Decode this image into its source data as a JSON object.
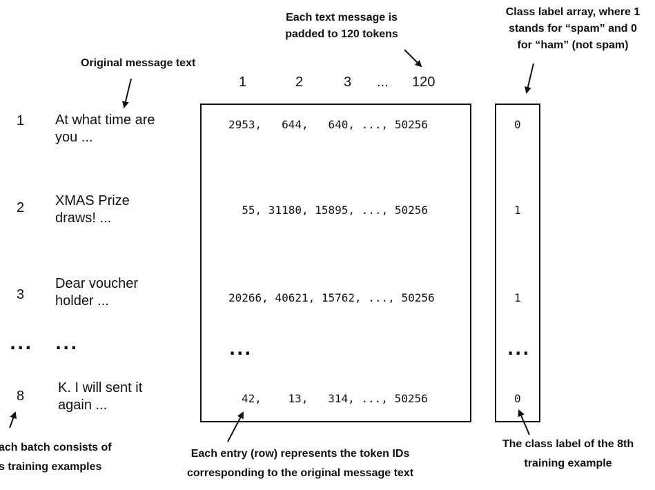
{
  "annotations": {
    "padded_tokens": [
      "Each text message is",
      "padded to 120 tokens"
    ],
    "class_label_array": [
      "Class label array, where 1",
      "stands for “spam” and 0",
      "for “ham” (not spam)"
    ],
    "original_message_text": "Original message text",
    "batch_consists": [
      "ach batch consists of",
      "s training examples"
    ],
    "each_entry_row": [
      "Each entry (row) represents the token IDs",
      "corresponding to the original message text"
    ],
    "class_label_8th": [
      "The class label of the 8th",
      "training example"
    ]
  },
  "column_headers": [
    "1",
    "2",
    "3",
    "...",
    "120"
  ],
  "rows": [
    {
      "index": "1",
      "text": [
        "At what time are",
        "you ..."
      ],
      "token_ids": "2953,   644,   640, ..., 50256",
      "label": "0"
    },
    {
      "index": "2",
      "text": [
        "XMAS Prize",
        "draws!  ..."
      ],
      "token_ids": "  55, 31180, 15895, ..., 50256",
      "label": "1"
    },
    {
      "index": "3",
      "text": [
        "Dear voucher",
        "holder ..."
      ],
      "token_ids": "20266, 40621, 15762, ..., 50256",
      "label": "1"
    },
    {
      "index": "8",
      "text": [
        "K. I will sent it",
        "again ..."
      ],
      "token_ids": "42,    13,   314, ..., 50256",
      "label": "0"
    }
  ],
  "ellipsis": {
    "index": "...",
    "text": "...",
    "matrix": "...",
    "label": "..."
  }
}
